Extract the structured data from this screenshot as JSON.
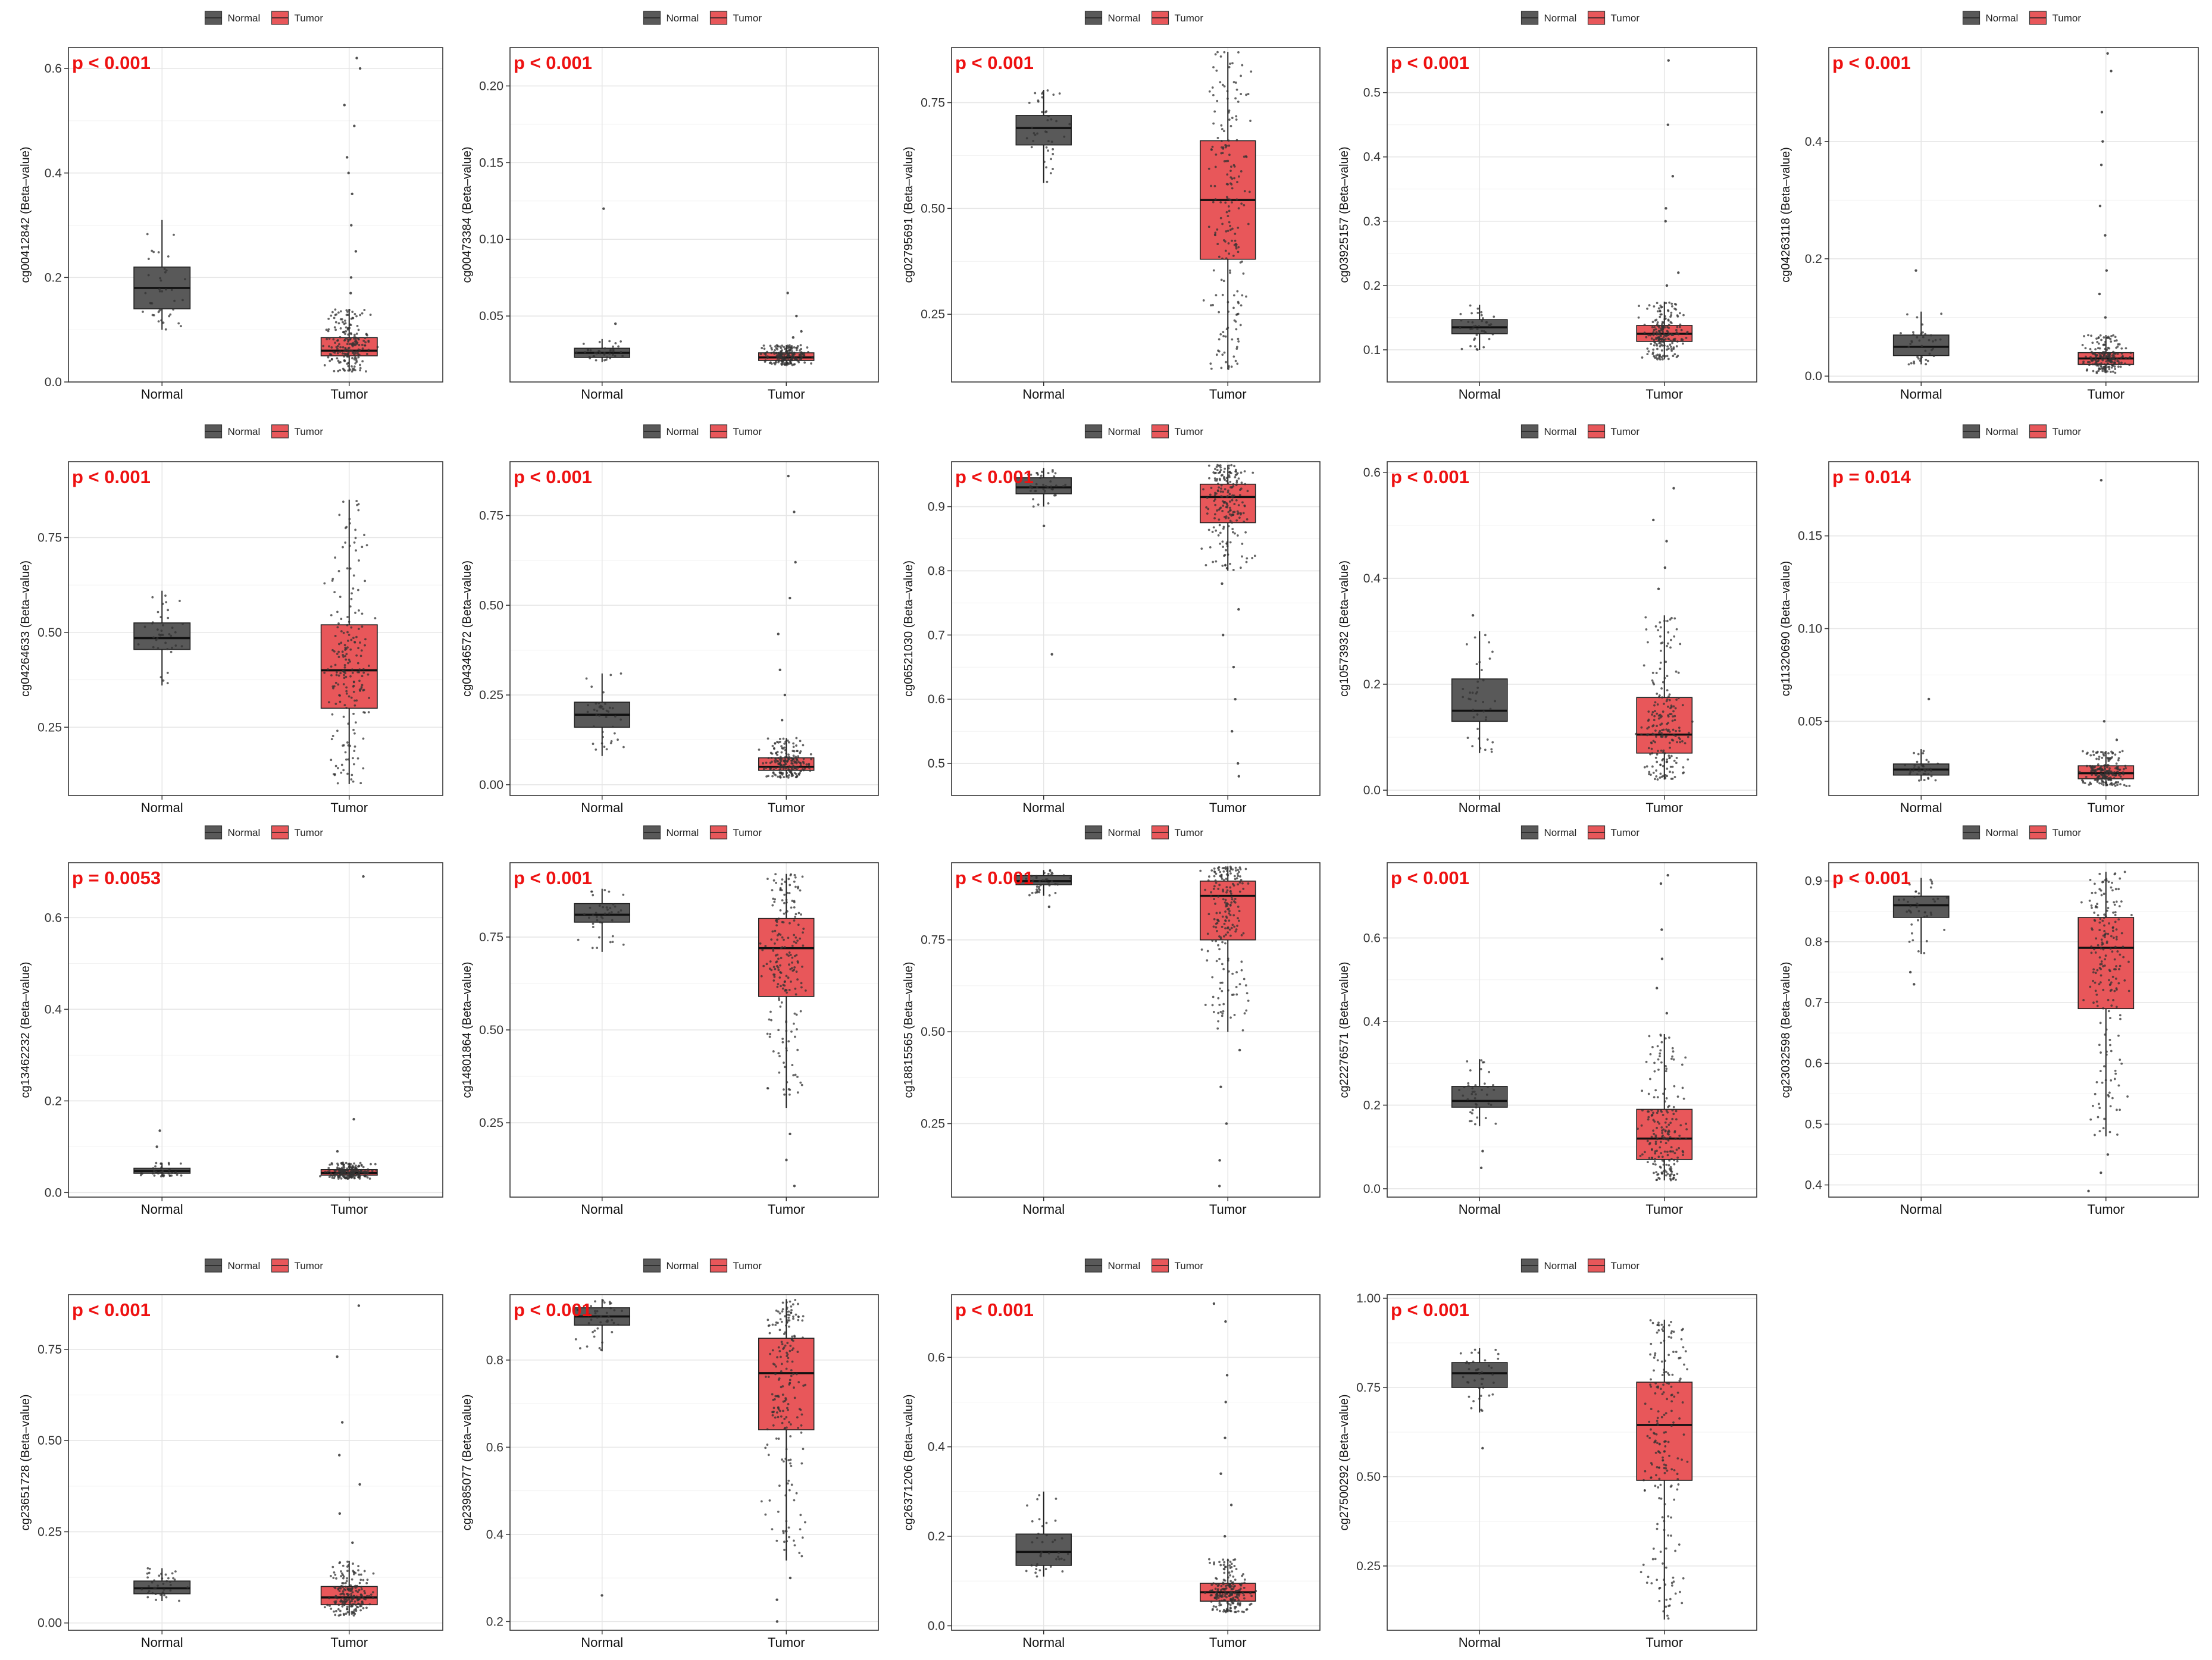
{
  "legend": [
    {
      "label": "Normal",
      "color": "#595959"
    },
    {
      "label": "Tumor",
      "color": "#e8575a"
    }
  ],
  "colors": {
    "normal": "#595959",
    "tumor": "#e8575a",
    "grid": "#e6e6e6",
    "pvalue": "#ee1111",
    "points": "#333333"
  },
  "chart_data": [
    {
      "type": "box",
      "ylabel": "cg00412842 (Beta–value)",
      "pvalue": "p < 0.001",
      "categories": [
        "Normal",
        "Tumor"
      ],
      "ylim": [
        0,
        0.64
      ],
      "yticks": [
        0,
        0.2,
        0.4,
        0.6
      ],
      "tick_labels": [
        "0.0",
        "0.2",
        "0.4",
        "0.6"
      ],
      "series": [
        {
          "name": "Normal",
          "whisker_low": 0.1,
          "q1": 0.14,
          "median": 0.18,
          "q3": 0.22,
          "whisker_high": 0.31,
          "outliers": []
        },
        {
          "name": "Tumor",
          "whisker_low": 0.02,
          "q1": 0.05,
          "median": 0.06,
          "q3": 0.085,
          "whisker_high": 0.14,
          "outliers": [
            0.17,
            0.2,
            0.25,
            0.3,
            0.36,
            0.4,
            0.43,
            0.49,
            0.53,
            0.6,
            0.62
          ]
        }
      ]
    },
    {
      "type": "box",
      "ylabel": "cg00473384 (Beta–value)",
      "pvalue": "p < 0.001",
      "categories": [
        "Normal",
        "Tumor"
      ],
      "ylim": [
        0.007,
        0.225
      ],
      "yticks": [
        0.05,
        0.1,
        0.15,
        0.2
      ],
      "tick_labels": [
        "0.05",
        "0.10",
        "0.15",
        "0.20"
      ],
      "series": [
        {
          "name": "Normal",
          "whisker_low": 0.02,
          "q1": 0.023,
          "median": 0.026,
          "q3": 0.029,
          "whisker_high": 0.035,
          "outliers": [
            0.045,
            0.12
          ]
        },
        {
          "name": "Tumor",
          "whisker_low": 0.018,
          "q1": 0.021,
          "median": 0.023,
          "q3": 0.026,
          "whisker_high": 0.031,
          "outliers": [
            0.036,
            0.04,
            0.05,
            0.065
          ]
        }
      ]
    },
    {
      "type": "box",
      "ylabel": "cg02795691 (Beta–value)",
      "pvalue": "p < 0.001",
      "categories": [
        "Normal",
        "Tumor"
      ],
      "ylim": [
        0.09,
        0.88
      ],
      "yticks": [
        0.25,
        0.5,
        0.75
      ],
      "tick_labels": [
        "0.25",
        "0.50",
        "0.75"
      ],
      "series": [
        {
          "name": "Normal",
          "whisker_low": 0.56,
          "q1": 0.65,
          "median": 0.69,
          "q3": 0.72,
          "whisker_high": 0.78,
          "outliers": []
        },
        {
          "name": "Tumor",
          "whisker_low": 0.12,
          "q1": 0.38,
          "median": 0.52,
          "q3": 0.66,
          "whisker_high": 0.87,
          "outliers": []
        }
      ]
    },
    {
      "type": "box",
      "ylabel": "cg03925157 (Beta–value)",
      "pvalue": "p < 0.001",
      "categories": [
        "Normal",
        "Tumor"
      ],
      "ylim": [
        0.05,
        0.57
      ],
      "yticks": [
        0.1,
        0.2,
        0.3,
        0.4,
        0.5
      ],
      "tick_labels": [
        "0.1",
        "0.2",
        "0.3",
        "0.4",
        "0.5"
      ],
      "series": [
        {
          "name": "Normal",
          "whisker_low": 0.1,
          "q1": 0.125,
          "median": 0.135,
          "q3": 0.147,
          "whisker_high": 0.17,
          "outliers": []
        },
        {
          "name": "Tumor",
          "whisker_low": 0.085,
          "q1": 0.113,
          "median": 0.125,
          "q3": 0.138,
          "whisker_high": 0.175,
          "outliers": [
            0.2,
            0.22,
            0.3,
            0.32,
            0.37,
            0.45,
            0.55
          ]
        }
      ]
    },
    {
      "type": "box",
      "ylabel": "cg04263118 (Beta–value)",
      "pvalue": "p < 0.001",
      "categories": [
        "Normal",
        "Tumor"
      ],
      "ylim": [
        -0.01,
        0.56
      ],
      "yticks": [
        0,
        0.2,
        0.4
      ],
      "tick_labels": [
        "0.0",
        "0.2",
        "0.4"
      ],
      "series": [
        {
          "name": "Normal",
          "whisker_low": 0.02,
          "q1": 0.035,
          "median": 0.05,
          "q3": 0.07,
          "whisker_high": 0.11,
          "outliers": [
            0.18
          ]
        },
        {
          "name": "Tumor",
          "whisker_low": 0.005,
          "q1": 0.02,
          "median": 0.03,
          "q3": 0.04,
          "whisker_high": 0.07,
          "outliers": [
            0.1,
            0.14,
            0.18,
            0.24,
            0.29,
            0.36,
            0.4,
            0.45,
            0.52,
            0.55
          ]
        }
      ]
    },
    {
      "type": "box",
      "ylabel": "cg04264633 (Beta–value)",
      "pvalue": "p < 0.001",
      "categories": [
        "Normal",
        "Tumor"
      ],
      "ylim": [
        0.07,
        0.95
      ],
      "yticks": [
        0.25,
        0.5,
        0.75
      ],
      "tick_labels": [
        "0.25",
        "0.50",
        "0.75"
      ],
      "series": [
        {
          "name": "Normal",
          "whisker_low": 0.36,
          "q1": 0.455,
          "median": 0.485,
          "q3": 0.525,
          "whisker_high": 0.61,
          "outliers": []
        },
        {
          "name": "Tumor",
          "whisker_low": 0.1,
          "q1": 0.3,
          "median": 0.4,
          "q3": 0.52,
          "whisker_high": 0.85,
          "outliers": []
        }
      ]
    },
    {
      "type": "box",
      "ylabel": "cg04346572 (Beta–value)",
      "pvalue": "p < 0.001",
      "categories": [
        "Normal",
        "Tumor"
      ],
      "ylim": [
        -0.03,
        0.9
      ],
      "yticks": [
        0,
        0.25,
        0.5,
        0.75
      ],
      "tick_labels": [
        "0.00",
        "0.25",
        "0.50",
        "0.75"
      ],
      "series": [
        {
          "name": "Normal",
          "whisker_low": 0.08,
          "q1": 0.16,
          "median": 0.195,
          "q3": 0.23,
          "whisker_high": 0.31,
          "outliers": []
        },
        {
          "name": "Tumor",
          "whisker_low": 0.02,
          "q1": 0.04,
          "median": 0.05,
          "q3": 0.075,
          "whisker_high": 0.13,
          "outliers": [
            0.18,
            0.25,
            0.32,
            0.42,
            0.52,
            0.62,
            0.76,
            0.86
          ]
        }
      ]
    },
    {
      "type": "box",
      "ylabel": "cg06521030 (Beta–value)",
      "pvalue": "p < 0.001",
      "categories": [
        "Normal",
        "Tumor"
      ],
      "ylim": [
        0.45,
        0.97
      ],
      "yticks": [
        0.5,
        0.6,
        0.7,
        0.8,
        0.9
      ],
      "tick_labels": [
        "0.5",
        "0.6",
        "0.7",
        "0.8",
        "0.9"
      ],
      "series": [
        {
          "name": "Normal",
          "whisker_low": 0.9,
          "q1": 0.92,
          "median": 0.93,
          "q3": 0.945,
          "whisker_high": 0.96,
          "outliers": [
            0.87,
            0.67
          ]
        },
        {
          "name": "Tumor",
          "whisker_low": 0.8,
          "q1": 0.875,
          "median": 0.915,
          "q3": 0.935,
          "whisker_high": 0.965,
          "outliers": [
            0.78,
            0.74,
            0.7,
            0.65,
            0.6,
            0.55,
            0.5,
            0.48
          ]
        }
      ]
    },
    {
      "type": "box",
      "ylabel": "cg10573932 (Beta–value)",
      "pvalue": "p < 0.001",
      "categories": [
        "Normal",
        "Tumor"
      ],
      "ylim": [
        -0.01,
        0.62
      ],
      "yticks": [
        0,
        0.2,
        0.4,
        0.6
      ],
      "tick_labels": [
        "0.0",
        "0.2",
        "0.4",
        "0.6"
      ],
      "series": [
        {
          "name": "Normal",
          "whisker_low": 0.07,
          "q1": 0.13,
          "median": 0.15,
          "q3": 0.21,
          "whisker_high": 0.3,
          "outliers": [
            0.33
          ]
        },
        {
          "name": "Tumor",
          "whisker_low": 0.02,
          "q1": 0.07,
          "median": 0.105,
          "q3": 0.175,
          "whisker_high": 0.33,
          "outliers": [
            0.38,
            0.42,
            0.47,
            0.51,
            0.57
          ]
        }
      ]
    },
    {
      "type": "box",
      "ylabel": "cg11320690 (Beta–value)",
      "pvalue": "p = 0.014",
      "categories": [
        "Normal",
        "Tumor"
      ],
      "ylim": [
        0.01,
        0.19
      ],
      "yticks": [
        0.05,
        0.1,
        0.15
      ],
      "tick_labels": [
        "0.05",
        "0.10",
        "0.15"
      ],
      "series": [
        {
          "name": "Normal",
          "whisker_low": 0.018,
          "q1": 0.021,
          "median": 0.024,
          "q3": 0.027,
          "whisker_high": 0.035,
          "outliers": [
            0.062
          ]
        },
        {
          "name": "Tumor",
          "whisker_low": 0.015,
          "q1": 0.019,
          "median": 0.022,
          "q3": 0.026,
          "whisker_high": 0.034,
          "outliers": [
            0.04,
            0.05,
            0.18
          ]
        }
      ]
    },
    {
      "type": "box",
      "ylabel": "cg13462232 (Beta–value)",
      "pvalue": "p = 0.0053",
      "categories": [
        "Normal",
        "Tumor"
      ],
      "ylim": [
        -0.01,
        0.72
      ],
      "yticks": [
        0,
        0.2,
        0.4,
        0.6
      ],
      "tick_labels": [
        "0.0",
        "0.2",
        "0.4",
        "0.6"
      ],
      "series": [
        {
          "name": "Normal",
          "whisker_low": 0.035,
          "q1": 0.042,
          "median": 0.047,
          "q3": 0.053,
          "whisker_high": 0.065,
          "outliers": [
            0.1,
            0.135
          ]
        },
        {
          "name": "Tumor",
          "whisker_low": 0.03,
          "q1": 0.038,
          "median": 0.043,
          "q3": 0.05,
          "whisker_high": 0.065,
          "outliers": [
            0.09,
            0.16,
            0.69
          ]
        }
      ]
    },
    {
      "type": "box",
      "ylabel": "cg14801864 (Beta–value)",
      "pvalue": "p < 0.001",
      "categories": [
        "Normal",
        "Tumor"
      ],
      "ylim": [
        0.05,
        0.95
      ],
      "yticks": [
        0.25,
        0.5,
        0.75
      ],
      "tick_labels": [
        "0.25",
        "0.50",
        "0.75"
      ],
      "series": [
        {
          "name": "Normal",
          "whisker_low": 0.71,
          "q1": 0.79,
          "median": 0.81,
          "q3": 0.84,
          "whisker_high": 0.88,
          "outliers": []
        },
        {
          "name": "Tumor",
          "whisker_low": 0.29,
          "q1": 0.59,
          "median": 0.72,
          "q3": 0.8,
          "whisker_high": 0.92,
          "outliers": [
            0.22,
            0.15,
            0.08
          ]
        }
      ]
    },
    {
      "type": "box",
      "ylabel": "cg18815565 (Beta–value)",
      "pvalue": "p < 0.001",
      "categories": [
        "Normal",
        "Tumor"
      ],
      "ylim": [
        0.05,
        0.96
      ],
      "yticks": [
        0.25,
        0.5,
        0.75
      ],
      "tick_labels": [
        "0.25",
        "0.50",
        "0.75"
      ],
      "series": [
        {
          "name": "Normal",
          "whisker_low": 0.87,
          "q1": 0.9,
          "median": 0.91,
          "q3": 0.925,
          "whisker_high": 0.94,
          "outliers": [
            0.84
          ]
        },
        {
          "name": "Tumor",
          "whisker_low": 0.5,
          "q1": 0.75,
          "median": 0.87,
          "q3": 0.91,
          "whisker_high": 0.95,
          "outliers": [
            0.45,
            0.35,
            0.25,
            0.15,
            0.08
          ]
        }
      ]
    },
    {
      "type": "box",
      "ylabel": "cg22276571 (Beta–value)",
      "pvalue": "p < 0.001",
      "categories": [
        "Normal",
        "Tumor"
      ],
      "ylim": [
        -0.02,
        0.78
      ],
      "yticks": [
        0,
        0.2,
        0.4,
        0.6
      ],
      "tick_labels": [
        "0.0",
        "0.2",
        "0.4",
        "0.6"
      ],
      "series": [
        {
          "name": "Normal",
          "whisker_low": 0.15,
          "q1": 0.195,
          "median": 0.21,
          "q3": 0.245,
          "whisker_high": 0.31,
          "outliers": [
            0.09,
            0.05
          ]
        },
        {
          "name": "Tumor",
          "whisker_low": 0.02,
          "q1": 0.07,
          "median": 0.12,
          "q3": 0.19,
          "whisker_high": 0.37,
          "outliers": [
            0.42,
            0.48,
            0.55,
            0.62,
            0.73,
            0.75
          ]
        }
      ]
    },
    {
      "type": "box",
      "ylabel": "cg23032598 (Beta–value)",
      "pvalue": "p < 0.001",
      "categories": [
        "Normal",
        "Tumor"
      ],
      "ylim": [
        0.38,
        0.93
      ],
      "yticks": [
        0.4,
        0.5,
        0.6,
        0.7,
        0.8,
        0.9
      ],
      "tick_labels": [
        "0.4",
        "0.5",
        "0.6",
        "0.7",
        "0.8",
        "0.9"
      ],
      "series": [
        {
          "name": "Normal",
          "whisker_low": 0.78,
          "q1": 0.84,
          "median": 0.86,
          "q3": 0.875,
          "whisker_high": 0.905,
          "outliers": [
            0.75,
            0.73
          ]
        },
        {
          "name": "Tumor",
          "whisker_low": 0.48,
          "q1": 0.69,
          "median": 0.79,
          "q3": 0.84,
          "whisker_high": 0.915,
          "outliers": [
            0.45,
            0.42,
            0.39
          ]
        }
      ]
    },
    {
      "type": "box",
      "ylabel": "cg23651728 (Beta–value)",
      "pvalue": "p < 0.001",
      "categories": [
        "Normal",
        "Tumor"
      ],
      "ylim": [
        -0.02,
        0.9
      ],
      "yticks": [
        0,
        0.25,
        0.5,
        0.75
      ],
      "tick_labels": [
        "0.00",
        "0.25",
        "0.50",
        "0.75"
      ],
      "series": [
        {
          "name": "Normal",
          "whisker_low": 0.06,
          "q1": 0.08,
          "median": 0.095,
          "q3": 0.115,
          "whisker_high": 0.15,
          "outliers": []
        },
        {
          "name": "Tumor",
          "whisker_low": 0.02,
          "q1": 0.05,
          "median": 0.07,
          "q3": 0.1,
          "whisker_high": 0.17,
          "outliers": [
            0.22,
            0.3,
            0.38,
            0.46,
            0.55,
            0.73,
            0.87
          ]
        }
      ]
    },
    {
      "type": "box",
      "ylabel": "cg23985077 (Beta–value)",
      "pvalue": "p < 0.001",
      "categories": [
        "Normal",
        "Tumor"
      ],
      "ylim": [
        0.18,
        0.95
      ],
      "yticks": [
        0.2,
        0.4,
        0.6,
        0.8
      ],
      "tick_labels": [
        "0.2",
        "0.4",
        "0.6",
        "0.8"
      ],
      "series": [
        {
          "name": "Normal",
          "whisker_low": 0.82,
          "q1": 0.88,
          "median": 0.9,
          "q3": 0.92,
          "whisker_high": 0.94,
          "outliers": [
            0.26
          ]
        },
        {
          "name": "Tumor",
          "whisker_low": 0.34,
          "q1": 0.64,
          "median": 0.77,
          "q3": 0.85,
          "whisker_high": 0.94,
          "outliers": [
            0.3,
            0.25,
            0.2
          ]
        }
      ]
    },
    {
      "type": "box",
      "ylabel": "cg26371206 (Beta–value)",
      "pvalue": "p < 0.001",
      "categories": [
        "Normal",
        "Tumor"
      ],
      "ylim": [
        -0.01,
        0.74
      ],
      "yticks": [
        0,
        0.2,
        0.4,
        0.6
      ],
      "tick_labels": [
        "0.0",
        "0.2",
        "0.4",
        "0.6"
      ],
      "series": [
        {
          "name": "Normal",
          "whisker_low": 0.11,
          "q1": 0.135,
          "median": 0.165,
          "q3": 0.205,
          "whisker_high": 0.3,
          "outliers": []
        },
        {
          "name": "Tumor",
          "whisker_low": 0.03,
          "q1": 0.055,
          "median": 0.075,
          "q3": 0.095,
          "whisker_high": 0.15,
          "outliers": [
            0.2,
            0.27,
            0.34,
            0.42,
            0.5,
            0.56,
            0.68,
            0.72
          ]
        }
      ]
    },
    {
      "type": "box",
      "ylabel": "cg27500292 (Beta–value)",
      "pvalue": "p < 0.001",
      "categories": [
        "Normal",
        "Tumor"
      ],
      "ylim": [
        0.07,
        1.01
      ],
      "yticks": [
        0.25,
        0.5,
        0.75,
        1.0
      ],
      "tick_labels": [
        "0.25",
        "0.50",
        "0.75",
        "1.00"
      ],
      "series": [
        {
          "name": "Normal",
          "whisker_low": 0.68,
          "q1": 0.75,
          "median": 0.79,
          "q3": 0.82,
          "whisker_high": 0.86,
          "outliers": [
            0.58
          ]
        },
        {
          "name": "Tumor",
          "whisker_low": 0.1,
          "q1": 0.49,
          "median": 0.645,
          "q3": 0.765,
          "whisker_high": 0.94,
          "outliers": []
        }
      ]
    }
  ]
}
